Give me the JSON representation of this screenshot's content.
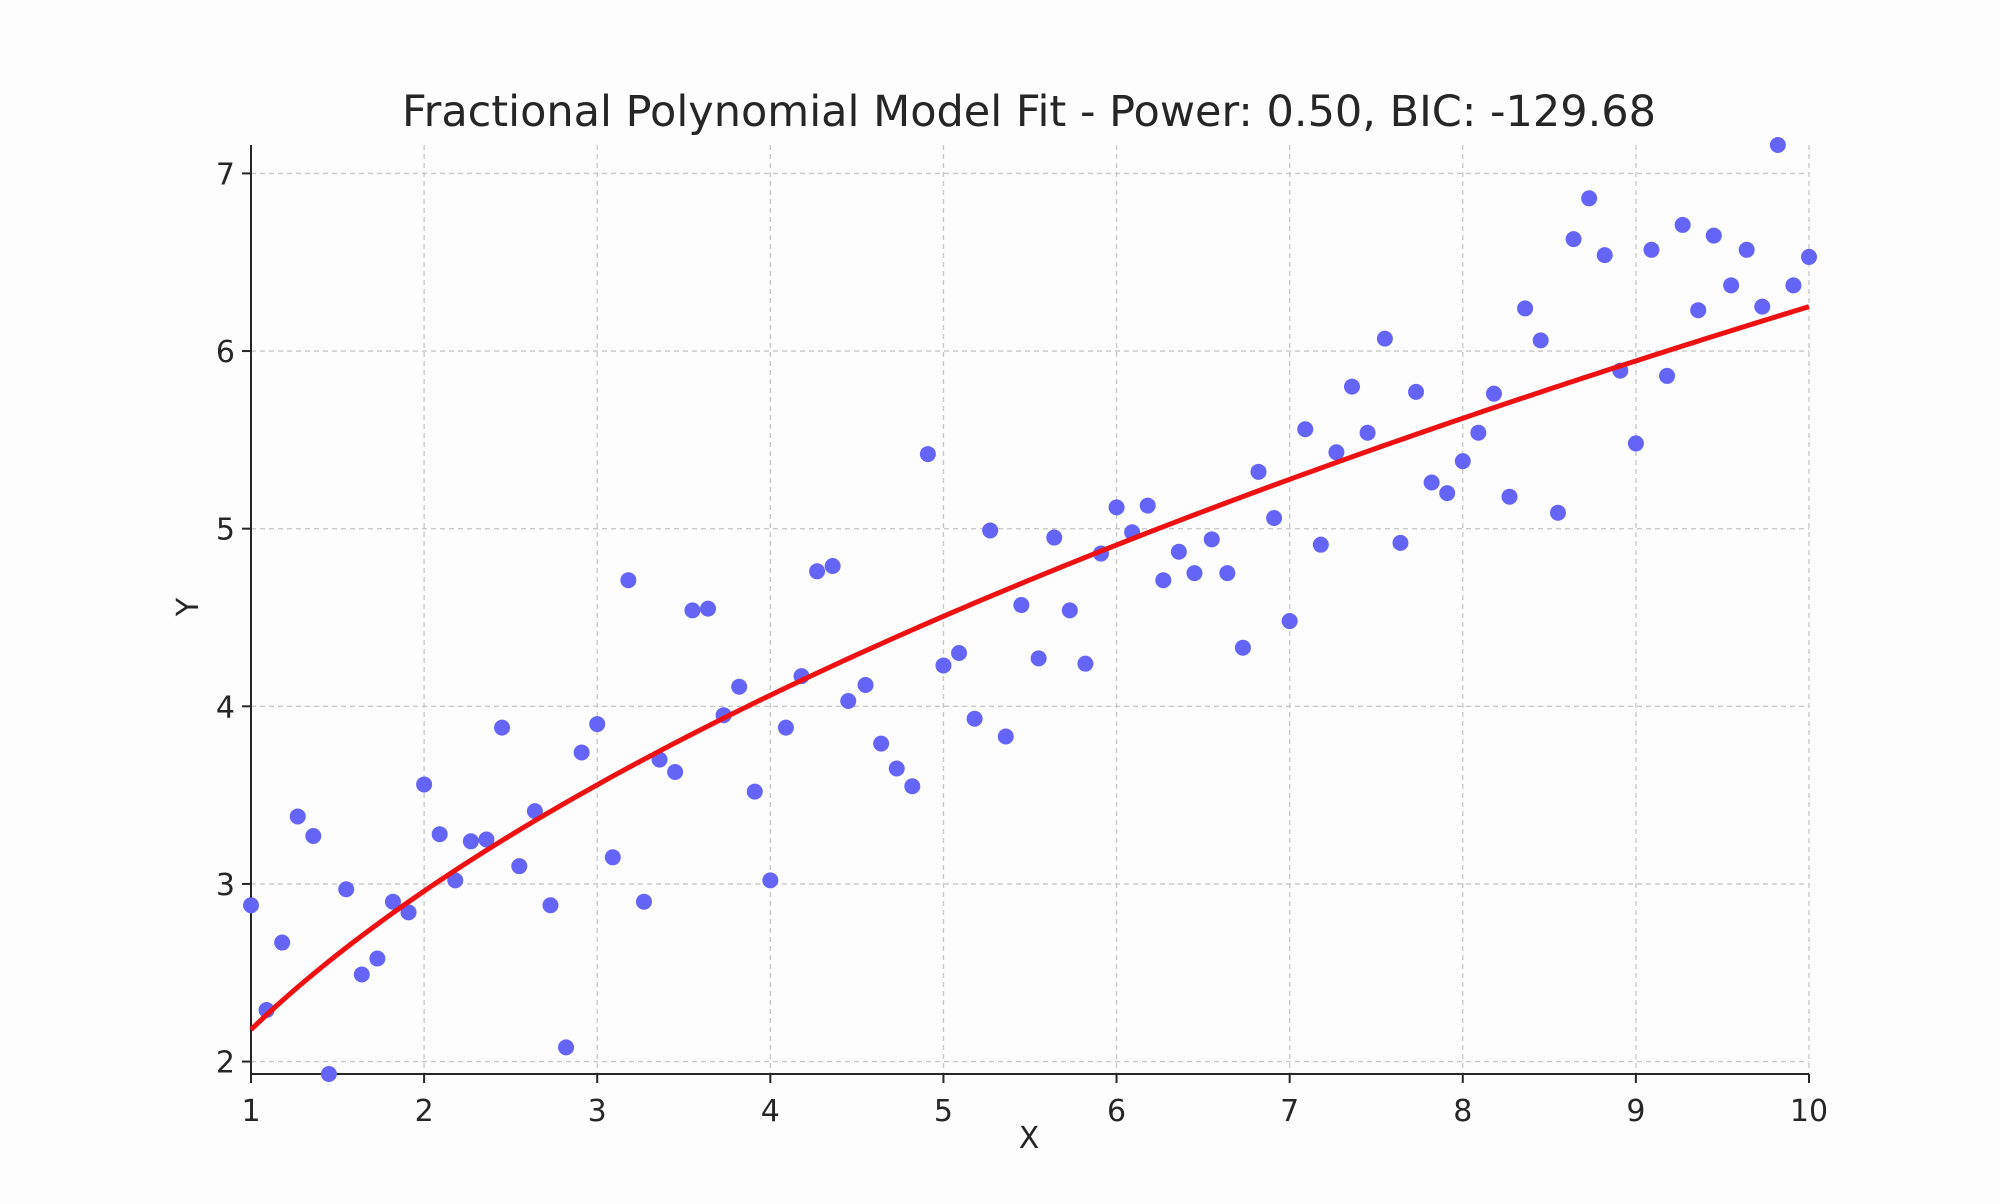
{
  "chart_data": {
    "type": "scatter",
    "title": "Fractional Polynomial Model Fit - Power: 0.50, BIC: -129.68",
    "xlabel": "X",
    "ylabel": "Y",
    "xlim": [
      1,
      10
    ],
    "ylim": [
      1.93,
      7.16
    ],
    "xticks": [
      1,
      2,
      3,
      4,
      5,
      6,
      7,
      8,
      9,
      10
    ],
    "yticks": [
      2,
      3,
      4,
      5,
      6,
      7
    ],
    "grid": true,
    "colors": {
      "points": "#6464f7",
      "fit": "#ee1111",
      "grid": "#c8c8c8",
      "axis": "#262626"
    },
    "series": [
      {
        "kind": "scatter",
        "x": [
          1.0,
          1.09,
          1.18,
          1.27,
          1.36,
          1.45,
          1.55,
          1.64,
          1.73,
          1.82,
          1.91,
          2.0,
          2.09,
          2.18,
          2.27,
          2.36,
          2.45,
          2.55,
          2.64,
          2.73,
          2.82,
          2.91,
          3.0,
          3.09,
          3.18,
          3.27,
          3.36,
          3.45,
          3.55,
          3.64,
          3.73,
          3.82,
          3.91,
          4.0,
          4.09,
          4.18,
          4.27,
          4.36,
          4.45,
          4.55,
          4.64,
          4.73,
          4.82,
          4.91,
          5.0,
          5.09,
          5.18,
          5.27,
          5.36,
          5.45,
          5.55,
          5.64,
          5.73,
          5.82,
          5.91,
          6.0,
          6.09,
          6.18,
          6.27,
          6.36,
          6.45,
          6.55,
          6.64,
          6.73,
          6.82,
          6.91,
          7.0,
          7.09,
          7.18,
          7.27,
          7.36,
          7.45,
          7.55,
          7.64,
          7.73,
          7.82,
          7.91,
          8.0,
          8.09,
          8.18,
          8.27,
          8.36,
          8.45,
          8.55,
          8.64,
          8.73,
          8.82,
          8.91,
          9.0,
          9.09,
          9.18,
          9.27,
          9.36,
          9.45,
          9.55,
          9.64,
          9.73,
          9.82,
          9.91,
          10.0
        ],
        "y": [
          2.88,
          2.29,
          2.67,
          3.38,
          3.27,
          1.93,
          2.97,
          2.49,
          2.58,
          2.9,
          2.84,
          3.56,
          3.28,
          3.02,
          3.24,
          3.25,
          3.88,
          3.1,
          3.41,
          2.88,
          2.08,
          3.74,
          3.9,
          3.15,
          4.71,
          2.9,
          3.7,
          3.63,
          4.54,
          4.55,
          3.95,
          4.11,
          3.52,
          3.02,
          3.88,
          4.17,
          4.76,
          4.79,
          4.03,
          4.12,
          3.79,
          3.65,
          3.55,
          5.42,
          4.23,
          4.3,
          3.93,
          4.99,
          3.83,
          4.57,
          4.27,
          4.95,
          4.54,
          4.24,
          4.86,
          5.12,
          4.98,
          5.13,
          4.71,
          4.87,
          4.75,
          4.94,
          4.75,
          4.33,
          5.32,
          5.06,
          4.48,
          5.56,
          4.91,
          5.43,
          5.8,
          5.54,
          6.07,
          4.92,
          5.77,
          5.26,
          5.2,
          5.38,
          5.54,
          5.76,
          5.18,
          6.24,
          6.06,
          5.09,
          6.63,
          6.86,
          6.54,
          5.89,
          5.48,
          6.57,
          5.86,
          6.71,
          6.23,
          6.65,
          6.37,
          6.57,
          6.25,
          7.16,
          6.37,
          6.53
        ]
      },
      {
        "kind": "line",
        "description": "fitted curve y = a + b*sqrt(x)",
        "x": [
          1,
          2,
          3,
          4,
          5,
          6,
          7,
          8,
          9,
          10
        ],
        "y": [
          2.18,
          2.95,
          3.54,
          4.04,
          4.48,
          4.88,
          5.24,
          5.59,
          5.91,
          6.25
        ]
      }
    ]
  }
}
